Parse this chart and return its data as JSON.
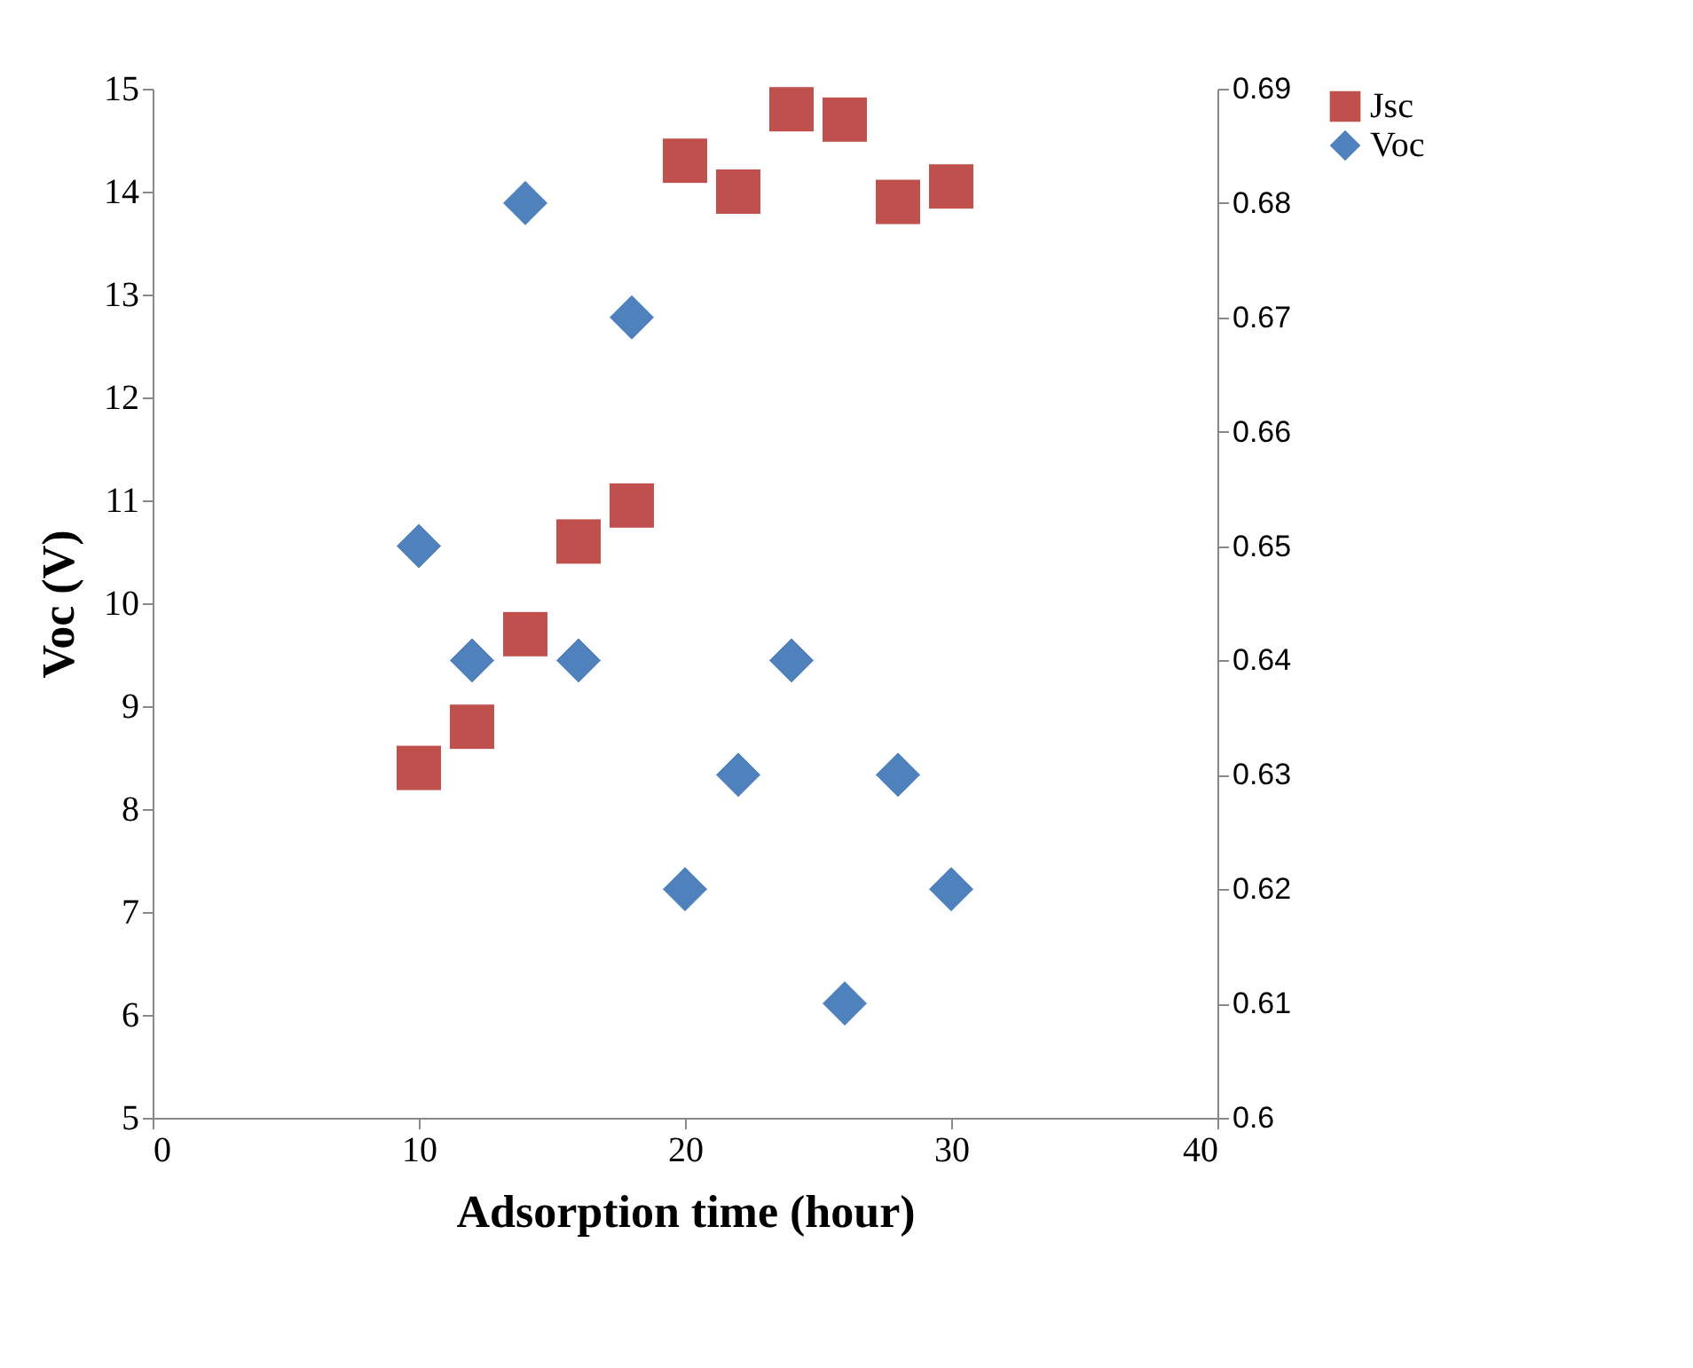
{
  "chart_data": {
    "type": "scatter",
    "xlabel": "Adsorption time (hour)",
    "ylabel": "Voc (V)",
    "xlim": [
      0,
      40
    ],
    "xticks": [
      0,
      10,
      20,
      30,
      40
    ],
    "ylim": [
      5,
      15
    ],
    "yticks": [
      5,
      6,
      7,
      8,
      9,
      10,
      11,
      12,
      13,
      14,
      15
    ],
    "y2lim": [
      0.6,
      0.69
    ],
    "y2ticks": [
      0.6,
      0.61,
      0.62,
      0.63,
      0.64,
      0.65,
      0.66,
      0.67,
      0.68,
      0.69
    ],
    "x": [
      10,
      12,
      14,
      16,
      18,
      20,
      22,
      24,
      26,
      28,
      30
    ],
    "series": [
      {
        "name": "Jsc",
        "color": "#c0504d",
        "marker": "square",
        "values": [
          8.4,
          8.8,
          9.7,
          10.6,
          10.95,
          14.3,
          14.0,
          14.8,
          14.7,
          13.9,
          14.05
        ]
      },
      {
        "name": "Voc",
        "color": "#4f81bd",
        "marker": "diamond",
        "axis": "y2",
        "values": [
          0.65,
          0.64,
          0.68,
          0.64,
          0.67,
          0.62,
          0.63,
          0.64,
          0.61,
          0.63,
          0.62
        ]
      }
    ],
    "legend": "right",
    "grid": false
  }
}
